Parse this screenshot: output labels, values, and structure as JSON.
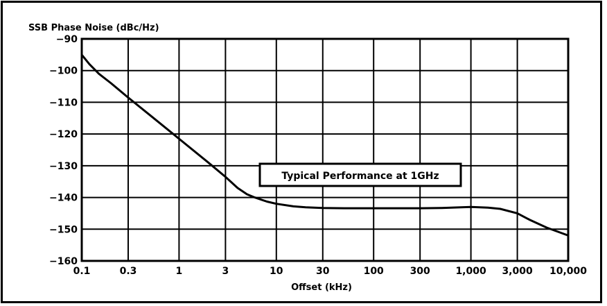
{
  "chart_data": {
    "type": "line",
    "title": "SSB Phase Noise (dBc/Hz)",
    "xlabel": "Offset (kHz)",
    "ylabel": "",
    "x_scale": "log",
    "xlim": [
      0.1,
      10000
    ],
    "ylim": [
      -160,
      -90
    ],
    "x_ticks": [
      0.1,
      0.3,
      1,
      3,
      10,
      30,
      100,
      300,
      1000,
      3000,
      10000
    ],
    "x_tick_labels": [
      "0.1",
      "0.3",
      "1",
      "3",
      "10",
      "30",
      "100",
      "300",
      "1,000",
      "3,000",
      "10,000"
    ],
    "y_ticks": [
      -90,
      -100,
      -110,
      -120,
      -130,
      -140,
      -150,
      -160
    ],
    "y_tick_labels": [
      "−90",
      "−100",
      "−110",
      "−120",
      "−130",
      "−140",
      "−150",
      "−160"
    ],
    "grid": true,
    "annotation": "Typical Performance at 1GHz",
    "series": [
      {
        "color": "#000000",
        "x": [
          0.1,
          0.12,
          0.15,
          0.2,
          0.3,
          0.5,
          1,
          2,
          3,
          4,
          5,
          6,
          8,
          10,
          15,
          20,
          30,
          50,
          100,
          200,
          300,
          500,
          1000,
          1500,
          2000,
          3000,
          4000,
          6000,
          10000
        ],
        "y": [
          -95,
          -98,
          -101,
          -104,
          -108.5,
          -114,
          -121.5,
          -129,
          -133.5,
          -137,
          -139,
          -140,
          -141.3,
          -142,
          -142.8,
          -143.1,
          -143.3,
          -143.4,
          -143.4,
          -143.4,
          -143.4,
          -143.3,
          -143,
          -143.2,
          -143.6,
          -145,
          -147,
          -149.5,
          -152
        ]
      }
    ]
  }
}
